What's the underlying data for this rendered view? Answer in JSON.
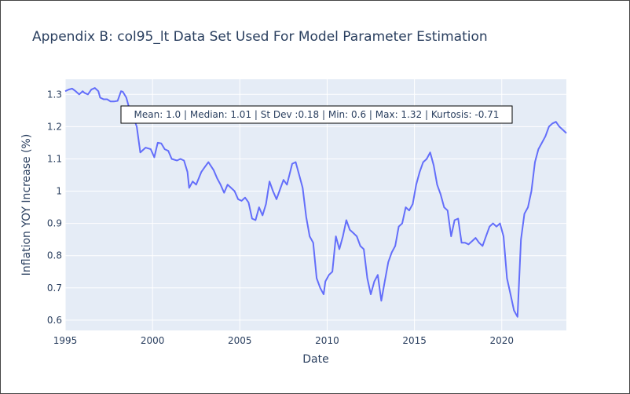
{
  "chart_data": {
    "type": "line",
    "title": "Appendix B: col95_lt Data Set Used For Model Parameter Estimation",
    "xlabel": "Date",
    "ylabel": "Inflation YOY Increase (%)",
    "xlim": [
      1995.0,
      2023.7
    ],
    "ylim": [
      0.568,
      1.347
    ],
    "x_ticks": [
      1995,
      2000,
      2005,
      2010,
      2015,
      2020
    ],
    "x_tick_labels": [
      "1995",
      "2000",
      "2005",
      "2010",
      "2015",
      "2020"
    ],
    "y_ticks": [
      0.6,
      0.7,
      0.8,
      0.9,
      1.0,
      1.1,
      1.2,
      1.3
    ],
    "y_tick_labels": [
      "0.6",
      "0.7",
      "0.8",
      "0.9",
      "1",
      "1.1",
      "1.2",
      "1.3"
    ],
    "grid": true,
    "line_color": "#636efa",
    "annotation": "Mean: 1.0 | Median: 1.01 | St Dev :0.18 | Min: 0.6 | Max: 1.32 | Kurtosis: -0.71",
    "series": [
      {
        "x": [
          1995.0,
          1995.2,
          1995.4,
          1995.6,
          1995.8,
          1996.0,
          1996.1,
          1996.3,
          1996.5,
          1996.7,
          1996.9,
          1997.0,
          1997.2,
          1997.4,
          1997.6,
          1997.8,
          1998.0,
          1998.2,
          1998.3,
          1998.5,
          1998.7,
          1998.9,
          1999.1,
          1999.3,
          1999.6,
          1999.9,
          2000.1,
          2000.3,
          2000.5,
          2000.7,
          2000.9,
          2001.1,
          2001.4,
          2001.6,
          2001.8,
          2002.0,
          2002.1,
          2002.3,
          2002.5,
          2002.8,
          2003.0,
          2003.2,
          2003.5,
          2003.7,
          2003.9,
          2004.1,
          2004.3,
          2004.5,
          2004.7,
          2004.9,
          2005.1,
          2005.3,
          2005.5,
          2005.7,
          2005.9,
          2006.1,
          2006.3,
          2006.5,
          2006.7,
          2006.9,
          2007.1,
          2007.3,
          2007.5,
          2007.7,
          2008.0,
          2008.2,
          2008.4,
          2008.6,
          2008.8,
          2009.0,
          2009.2,
          2009.4,
          2009.6,
          2009.8,
          2009.9,
          2010.1,
          2010.3,
          2010.5,
          2010.7,
          2010.9,
          2011.1,
          2011.3,
          2011.5,
          2011.7,
          2011.9,
          2012.1,
          2012.3,
          2012.5,
          2012.7,
          2012.9,
          2013.1,
          2013.3,
          2013.5,
          2013.7,
          2013.9,
          2014.1,
          2014.3,
          2014.5,
          2014.7,
          2014.9,
          2015.1,
          2015.3,
          2015.5,
          2015.7,
          2015.9,
          2016.1,
          2016.3,
          2016.5,
          2016.7,
          2016.9,
          2017.1,
          2017.3,
          2017.5,
          2017.7,
          2017.9,
          2018.1,
          2018.3,
          2018.5,
          2018.7,
          2018.9,
          2019.1,
          2019.3,
          2019.5,
          2019.7,
          2019.9,
          2020.1,
          2020.3,
          2020.5,
          2020.7,
          2020.9,
          2021.1,
          2021.3,
          2021.5,
          2021.7,
          2021.9,
          2022.1,
          2022.3,
          2022.5,
          2022.7,
          2022.9,
          2023.1,
          2023.3,
          2023.5,
          2023.7
        ],
        "y": [
          1.31,
          1.315,
          1.318,
          1.31,
          1.3,
          1.31,
          1.305,
          1.3,
          1.315,
          1.32,
          1.31,
          1.29,
          1.285,
          1.285,
          1.278,
          1.278,
          1.28,
          1.31,
          1.308,
          1.29,
          1.25,
          1.23,
          1.2,
          1.12,
          1.135,
          1.13,
          1.105,
          1.15,
          1.148,
          1.13,
          1.125,
          1.1,
          1.095,
          1.1,
          1.095,
          1.06,
          1.01,
          1.03,
          1.02,
          1.06,
          1.075,
          1.09,
          1.065,
          1.04,
          1.02,
          0.995,
          1.02,
          1.01,
          1.0,
          0.975,
          0.97,
          0.98,
          0.965,
          0.915,
          0.91,
          0.95,
          0.925,
          0.96,
          1.03,
          1.0,
          0.975,
          1.005,
          1.035,
          1.02,
          1.085,
          1.09,
          1.05,
          1.01,
          0.92,
          0.86,
          0.84,
          0.73,
          0.7,
          0.68,
          0.72,
          0.74,
          0.75,
          0.86,
          0.82,
          0.86,
          0.91,
          0.88,
          0.87,
          0.86,
          0.83,
          0.82,
          0.73,
          0.68,
          0.72,
          0.74,
          0.66,
          0.72,
          0.78,
          0.81,
          0.83,
          0.89,
          0.9,
          0.95,
          0.94,
          0.96,
          1.02,
          1.06,
          1.09,
          1.1,
          1.12,
          1.08,
          1.02,
          0.99,
          0.95,
          0.94,
          0.86,
          0.91,
          0.915,
          0.84,
          0.84,
          0.835,
          0.845,
          0.855,
          0.84,
          0.83,
          0.86,
          0.89,
          0.9,
          0.89,
          0.9,
          0.86,
          0.73,
          0.68,
          0.63,
          0.61,
          0.85,
          0.93,
          0.95,
          1.0,
          1.09,
          1.13,
          1.15,
          1.17,
          1.2,
          1.21,
          1.215,
          1.2,
          1.19,
          1.18
        ]
      }
    ]
  }
}
